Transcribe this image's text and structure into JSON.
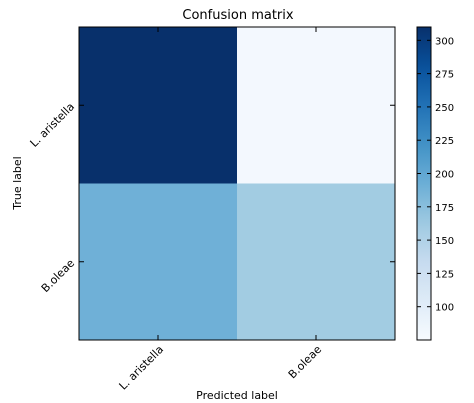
{
  "chart_data": {
    "type": "heatmap",
    "title": "Confusion matrix",
    "xlabel": "Predicted label",
    "ylabel": "True label",
    "x_categories": [
      "L. aristella",
      "B.oleae"
    ],
    "y_categories": [
      "L. aristella",
      "B.oleae"
    ],
    "values": [
      [
        310,
        80
      ],
      [
        190,
        160
      ]
    ],
    "colormap": "Blues",
    "color_range": [
      75,
      310
    ],
    "colorbar_ticks": [
      100,
      125,
      150,
      175,
      200,
      225,
      250,
      275,
      300
    ]
  }
}
